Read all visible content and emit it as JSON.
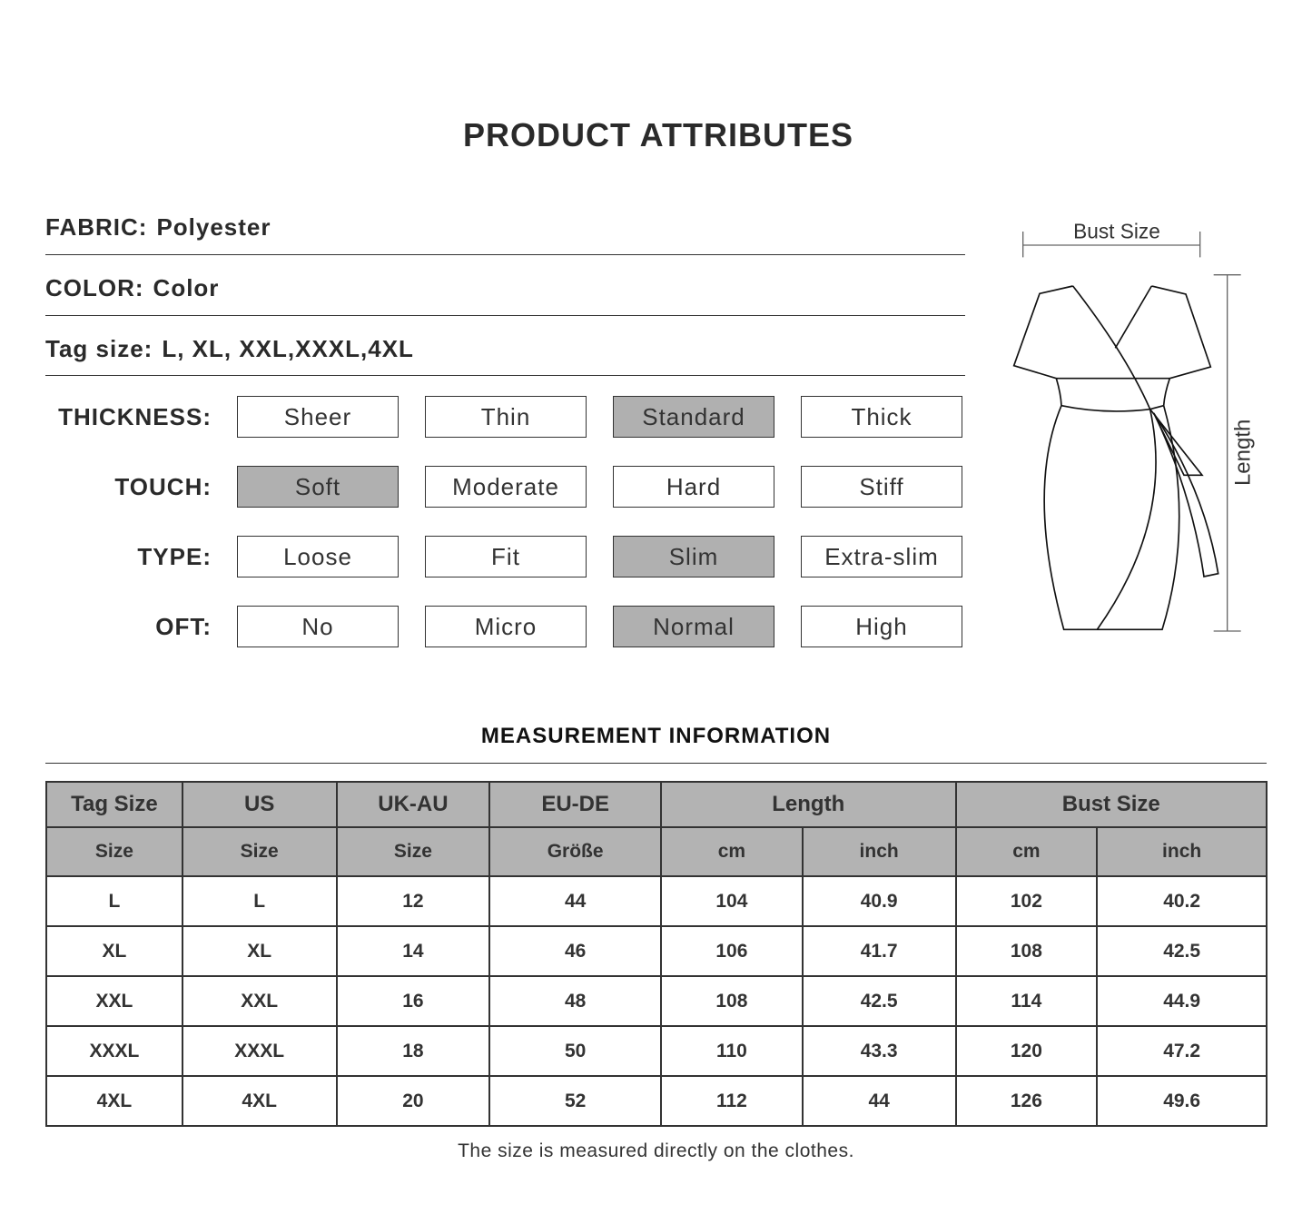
{
  "title": "PRODUCT ATTRIBUTES",
  "attributes": [
    {
      "label": "FABRIC:",
      "value": "Polyester"
    },
    {
      "label": "COLOR:",
      "value": "Color"
    },
    {
      "label": "Tag size:",
      "value": "L, XL, XXL,XXXL,4XL"
    }
  ],
  "ratings": [
    {
      "label": "THICKNESS:",
      "options": [
        "Sheer",
        "Thin",
        "Standard",
        "Thick"
      ],
      "selected": "Standard"
    },
    {
      "label": "TOUCH:",
      "options": [
        "Soft",
        "Moderate",
        "Hard",
        "Stiff"
      ],
      "selected": "Soft"
    },
    {
      "label": "TYPE:",
      "options": [
        "Loose",
        "Fit",
        "Slim",
        "Extra-slim"
      ],
      "selected": "Slim"
    },
    {
      "label": "OFT:",
      "options": [
        "No",
        "Micro",
        "Normal",
        "High"
      ],
      "selected": "Normal"
    }
  ],
  "diagram": {
    "bust_label": "Bust Size",
    "length_label": "Length"
  },
  "measurement": {
    "title": "MEASUREMENT INFORMATION",
    "header_top": [
      "Tag Size",
      "US",
      "UK-AU",
      "EU-DE",
      "Length",
      "Bust Size"
    ],
    "header_sub": [
      "Size",
      "Size",
      "Size",
      "Größe",
      "cm",
      "inch",
      "cm",
      "inch"
    ],
    "rows": [
      [
        "L",
        "L",
        "12",
        "44",
        "104",
        "40.9",
        "102",
        "40.2"
      ],
      [
        "XL",
        "XL",
        "14",
        "46",
        "106",
        "41.7",
        "108",
        "42.5"
      ],
      [
        "XXL",
        "XXL",
        "16",
        "48",
        "108",
        "42.5",
        "114",
        "44.9"
      ],
      [
        "XXXL",
        "XXXL",
        "18",
        "50",
        "110",
        "43.3",
        "120",
        "47.2"
      ],
      [
        "4XL",
        "4XL",
        "20",
        "52",
        "112",
        "44",
        "126",
        "49.6"
      ]
    ],
    "note": "The size is measured directly on the clothes."
  },
  "colors": {
    "selected_fill": "#b0b0b0",
    "header_fill": "#b3b3b3",
    "line": "#333333"
  }
}
